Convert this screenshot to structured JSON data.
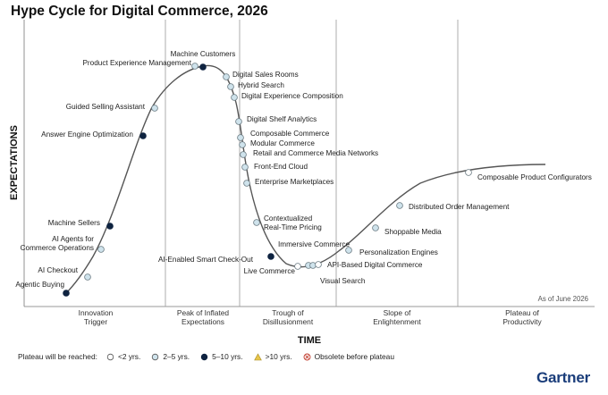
{
  "title": "Hype Cycle for Digital Commerce, 2026",
  "y_axis_label": "EXPECTATIONS",
  "x_axis_label": "TIME",
  "as_of": "As of June 2026",
  "brand": "Gartner",
  "colors": {
    "under_2": "#ffffff",
    "2_to_5": "#cfe3ec",
    "5_to_10": "#0e2340",
    "over_10": "#e8c64a",
    "obsolete": "#c0392b",
    "curve": "#555555",
    "gridline": "#9a9a9a"
  },
  "phases": [
    {
      "lines": [
        "Innovation",
        "Trigger"
      ]
    },
    {
      "lines": [
        "Peak of Inflated",
        "Expectations"
      ]
    },
    {
      "lines": [
        "Trough of",
        "Disillusionment"
      ]
    },
    {
      "lines": [
        "Slope of",
        "Enlightenment"
      ]
    },
    {
      "lines": [
        "Plateau of",
        "Productivity"
      ]
    }
  ],
  "legend": {
    "heading": "Plateau will be reached:",
    "items": [
      {
        "key": "under_2",
        "label": "<2 yrs.",
        "symbol": "circle"
      },
      {
        "key": "2_to_5",
        "label": "2–5 yrs.",
        "symbol": "circle"
      },
      {
        "key": "5_to_10",
        "label": "5–10 yrs.",
        "symbol": "circle"
      },
      {
        "key": "over_10",
        "label": ">10 yrs.",
        "symbol": "triangle"
      },
      {
        "key": "obsolete",
        "label": "Obsolete before plateau",
        "symbol": "crossed-circle"
      }
    ]
  },
  "technologies": [
    {
      "name": "Agentic Buying",
      "plateau": "5_to_10"
    },
    {
      "name": "AI Checkout",
      "plateau": "2_to_5"
    },
    {
      "name": "AI Agents for Commerce Operations",
      "plateau": "2_to_5"
    },
    {
      "name": "Machine Sellers",
      "plateau": "5_to_10"
    },
    {
      "name": "Answer Engine Optimization",
      "plateau": "5_to_10"
    },
    {
      "name": "Guided Selling Assistant",
      "plateau": "2_to_5"
    },
    {
      "name": "Product Experience Management",
      "plateau": "2_to_5"
    },
    {
      "name": "Machine Customers",
      "plateau": "5_to_10"
    },
    {
      "name": "Digital Sales Rooms",
      "plateau": "2_to_5"
    },
    {
      "name": "Hybrid Search",
      "plateau": "2_to_5"
    },
    {
      "name": "Digital Experience Composition",
      "plateau": "2_to_5"
    },
    {
      "name": "Digital Shelf Analytics",
      "plateau": "2_to_5"
    },
    {
      "name": "Composable Commerce",
      "plateau": "2_to_5"
    },
    {
      "name": "Modular Commerce",
      "plateau": "2_to_5"
    },
    {
      "name": "Retail and Commerce Media Networks",
      "plateau": "2_to_5"
    },
    {
      "name": "Front-End Cloud",
      "plateau": "2_to_5"
    },
    {
      "name": "Enterprise Marketplaces",
      "plateau": "2_to_5"
    },
    {
      "name": "Contextualized Real-Time Pricing",
      "plateau": "2_to_5"
    },
    {
      "name": "AI-Enabled Smart Check-Out",
      "plateau": "5_to_10"
    },
    {
      "name": "Live Commerce",
      "plateau": "under_2"
    },
    {
      "name": "Immersive Commerce",
      "plateau": "2_to_5"
    },
    {
      "name": "Visual Search",
      "plateau": "2_to_5"
    },
    {
      "name": "API-Based Digital Commerce",
      "plateau": "under_2"
    },
    {
      "name": "Personalization Engines",
      "plateau": "2_to_5"
    },
    {
      "name": "Shoppable Media",
      "plateau": "2_to_5"
    },
    {
      "name": "Distributed Order Management",
      "plateau": "2_to_5"
    },
    {
      "name": "Composable Product Configurators",
      "plateau": "under_2"
    }
  ]
}
